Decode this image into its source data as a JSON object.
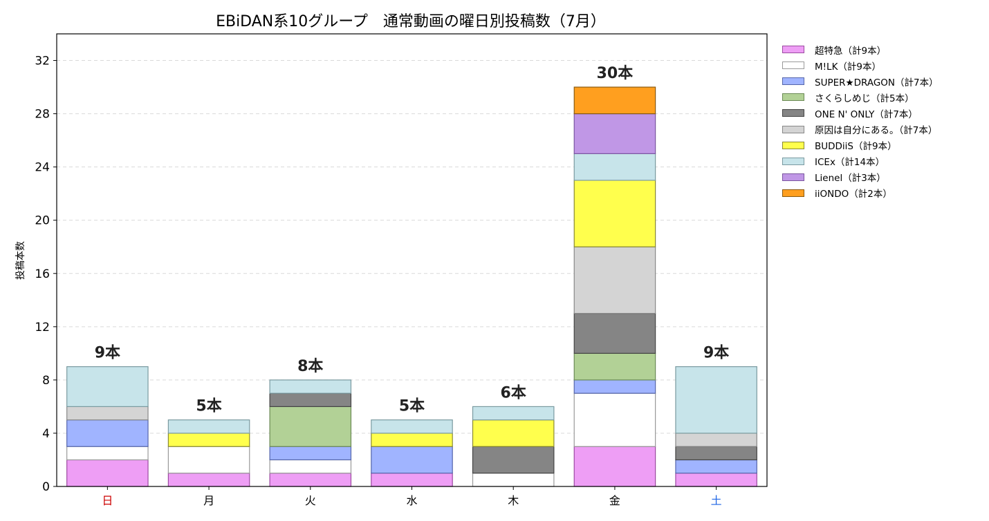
{
  "chart_data": {
    "type": "bar",
    "stacked": true,
    "title": "EBiDAN系10グループ　通常動画の曜日別投稿数（7月）",
    "ylabel": "投稿本数",
    "xlabel": "",
    "ylim": [
      0,
      34
    ],
    "yticks": [
      0,
      4,
      8,
      12,
      16,
      20,
      24,
      28,
      32
    ],
    "grid": true,
    "legend_position": "outside-right",
    "categories": [
      "日",
      "月",
      "火",
      "水",
      "木",
      "金",
      "土"
    ],
    "category_colors": [
      "#cc0000",
      "#000000",
      "#000000",
      "#000000",
      "#000000",
      "#000000",
      "#1f66e5"
    ],
    "totals_labels": [
      "9本",
      "5本",
      "8本",
      "5本",
      "6本",
      "30本",
      "9本"
    ],
    "totals": [
      9,
      5,
      8,
      5,
      6,
      30,
      9
    ],
    "series": [
      {
        "name": "超特急（計9本）",
        "color": "#ee9ef5",
        "edge": "#9b4aa0",
        "values": [
          2,
          1,
          1,
          1,
          0,
          3,
          1
        ]
      },
      {
        "name": "M!LK（計9本）",
        "color": "#ffffff",
        "edge": "#999999",
        "values": [
          1,
          2,
          1,
          0,
          1,
          4,
          0
        ]
      },
      {
        "name": "SUPER★DRAGON（計7本）",
        "color": "#a0b4ff",
        "edge": "#5566aa",
        "values": [
          2,
          0,
          1,
          2,
          0,
          1,
          1
        ]
      },
      {
        "name": "さくらしめじ（計5本）",
        "color": "#b2d196",
        "edge": "#6b8a55",
        "values": [
          0,
          0,
          3,
          0,
          0,
          2,
          0
        ]
      },
      {
        "name": "ONE N' ONLY（計7本）",
        "color": "#858585",
        "edge": "#444444",
        "values": [
          0,
          0,
          1,
          0,
          2,
          3,
          1
        ]
      },
      {
        "name": "原因は自分にある。（計7本）",
        "color": "#d4d4d4",
        "edge": "#888888",
        "values": [
          1,
          0,
          0,
          0,
          0,
          5,
          1
        ]
      },
      {
        "name": "BUDDiiS（計9本）",
        "color": "#ffff4d",
        "edge": "#888833",
        "values": [
          0,
          1,
          0,
          1,
          2,
          5,
          0
        ]
      },
      {
        "name": "ICEx（計14本）",
        "color": "#c7e4ea",
        "edge": "#7a9aa0",
        "values": [
          3,
          1,
          1,
          1,
          1,
          2,
          5
        ]
      },
      {
        "name": "Lienel（計3本）",
        "color": "#c097e6",
        "edge": "#7a55a0",
        "values": [
          0,
          0,
          0,
          0,
          0,
          3,
          0
        ]
      },
      {
        "name": "iiONDO（計2本）",
        "color": "#ff9f1f",
        "edge": "#8a5a10",
        "values": [
          0,
          0,
          0,
          0,
          0,
          2,
          0
        ]
      }
    ]
  }
}
